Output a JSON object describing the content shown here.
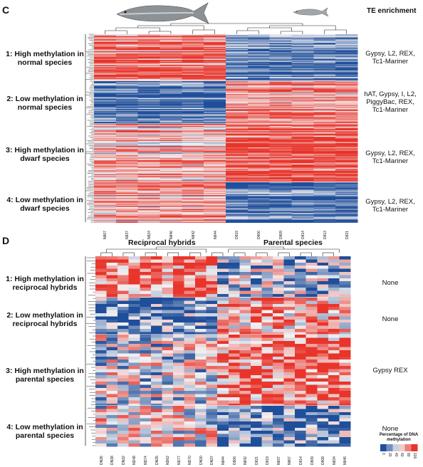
{
  "panels": [
    {
      "letter": "C",
      "te_header": "TE enrichment",
      "clusters": [
        {
          "label": "1: High methylation in normal species",
          "te": "Gypsy, L2, REX, Tc1-Mariner"
        },
        {
          "label": "2: Low methylation in normal species",
          "te": "hAT, Gypsy, I, L2, PiggyBac, REX, Tc1-Mariner"
        },
        {
          "label": "3: High methylation in dwarf species",
          "te": "Gypsy, L2, REX, Tc1-Mariner"
        },
        {
          "label": "4: Low methylation in dwarf species",
          "te": "Gypsy, L2, REX, Tc1-Mariner"
        }
      ],
      "samples": [
        "N807",
        "N837",
        "N824",
        "N846",
        "N842",
        "N844",
        "D819",
        "D806",
        "D809",
        "D814",
        "D813",
        "D821"
      ],
      "icons": [
        "normal-whitefish-icon",
        "dwarf-whitefish-icon"
      ]
    },
    {
      "letter": "D",
      "groups": [
        "Reciprocal hybrids",
        "Parental species"
      ],
      "clusters": [
        {
          "label": "1: High methylation in reciprocal hybrids",
          "te": "None"
        },
        {
          "label": "2: Low methylation in reciprocal hybrids",
          "te": "None"
        },
        {
          "label": "3: High methylation in parental species",
          "te": "Gypsy REX"
        },
        {
          "label": "4: Low methylation in parental species",
          "te": "None"
        }
      ],
      "samples": [
        "DN36",
        "DN38",
        "DN32",
        "ND48",
        "ND74",
        "DN35",
        "ND62",
        "ND77",
        "ND70",
        "DN30",
        "DN37",
        "N844",
        "D806",
        "N842",
        "D821",
        "D819",
        "N837",
        "N807",
        "D814",
        "D809",
        "D808",
        "N834",
        "N846"
      ],
      "legend": {
        "title": "Percentage of DNA methylation",
        "ticks": [
          "0",
          "20",
          "40",
          "60",
          "80",
          "100"
        ]
      }
    }
  ],
  "colors": {
    "high": "#e8342b",
    "low": "#1f4e9a",
    "mid": "#f2f2f2"
  }
}
